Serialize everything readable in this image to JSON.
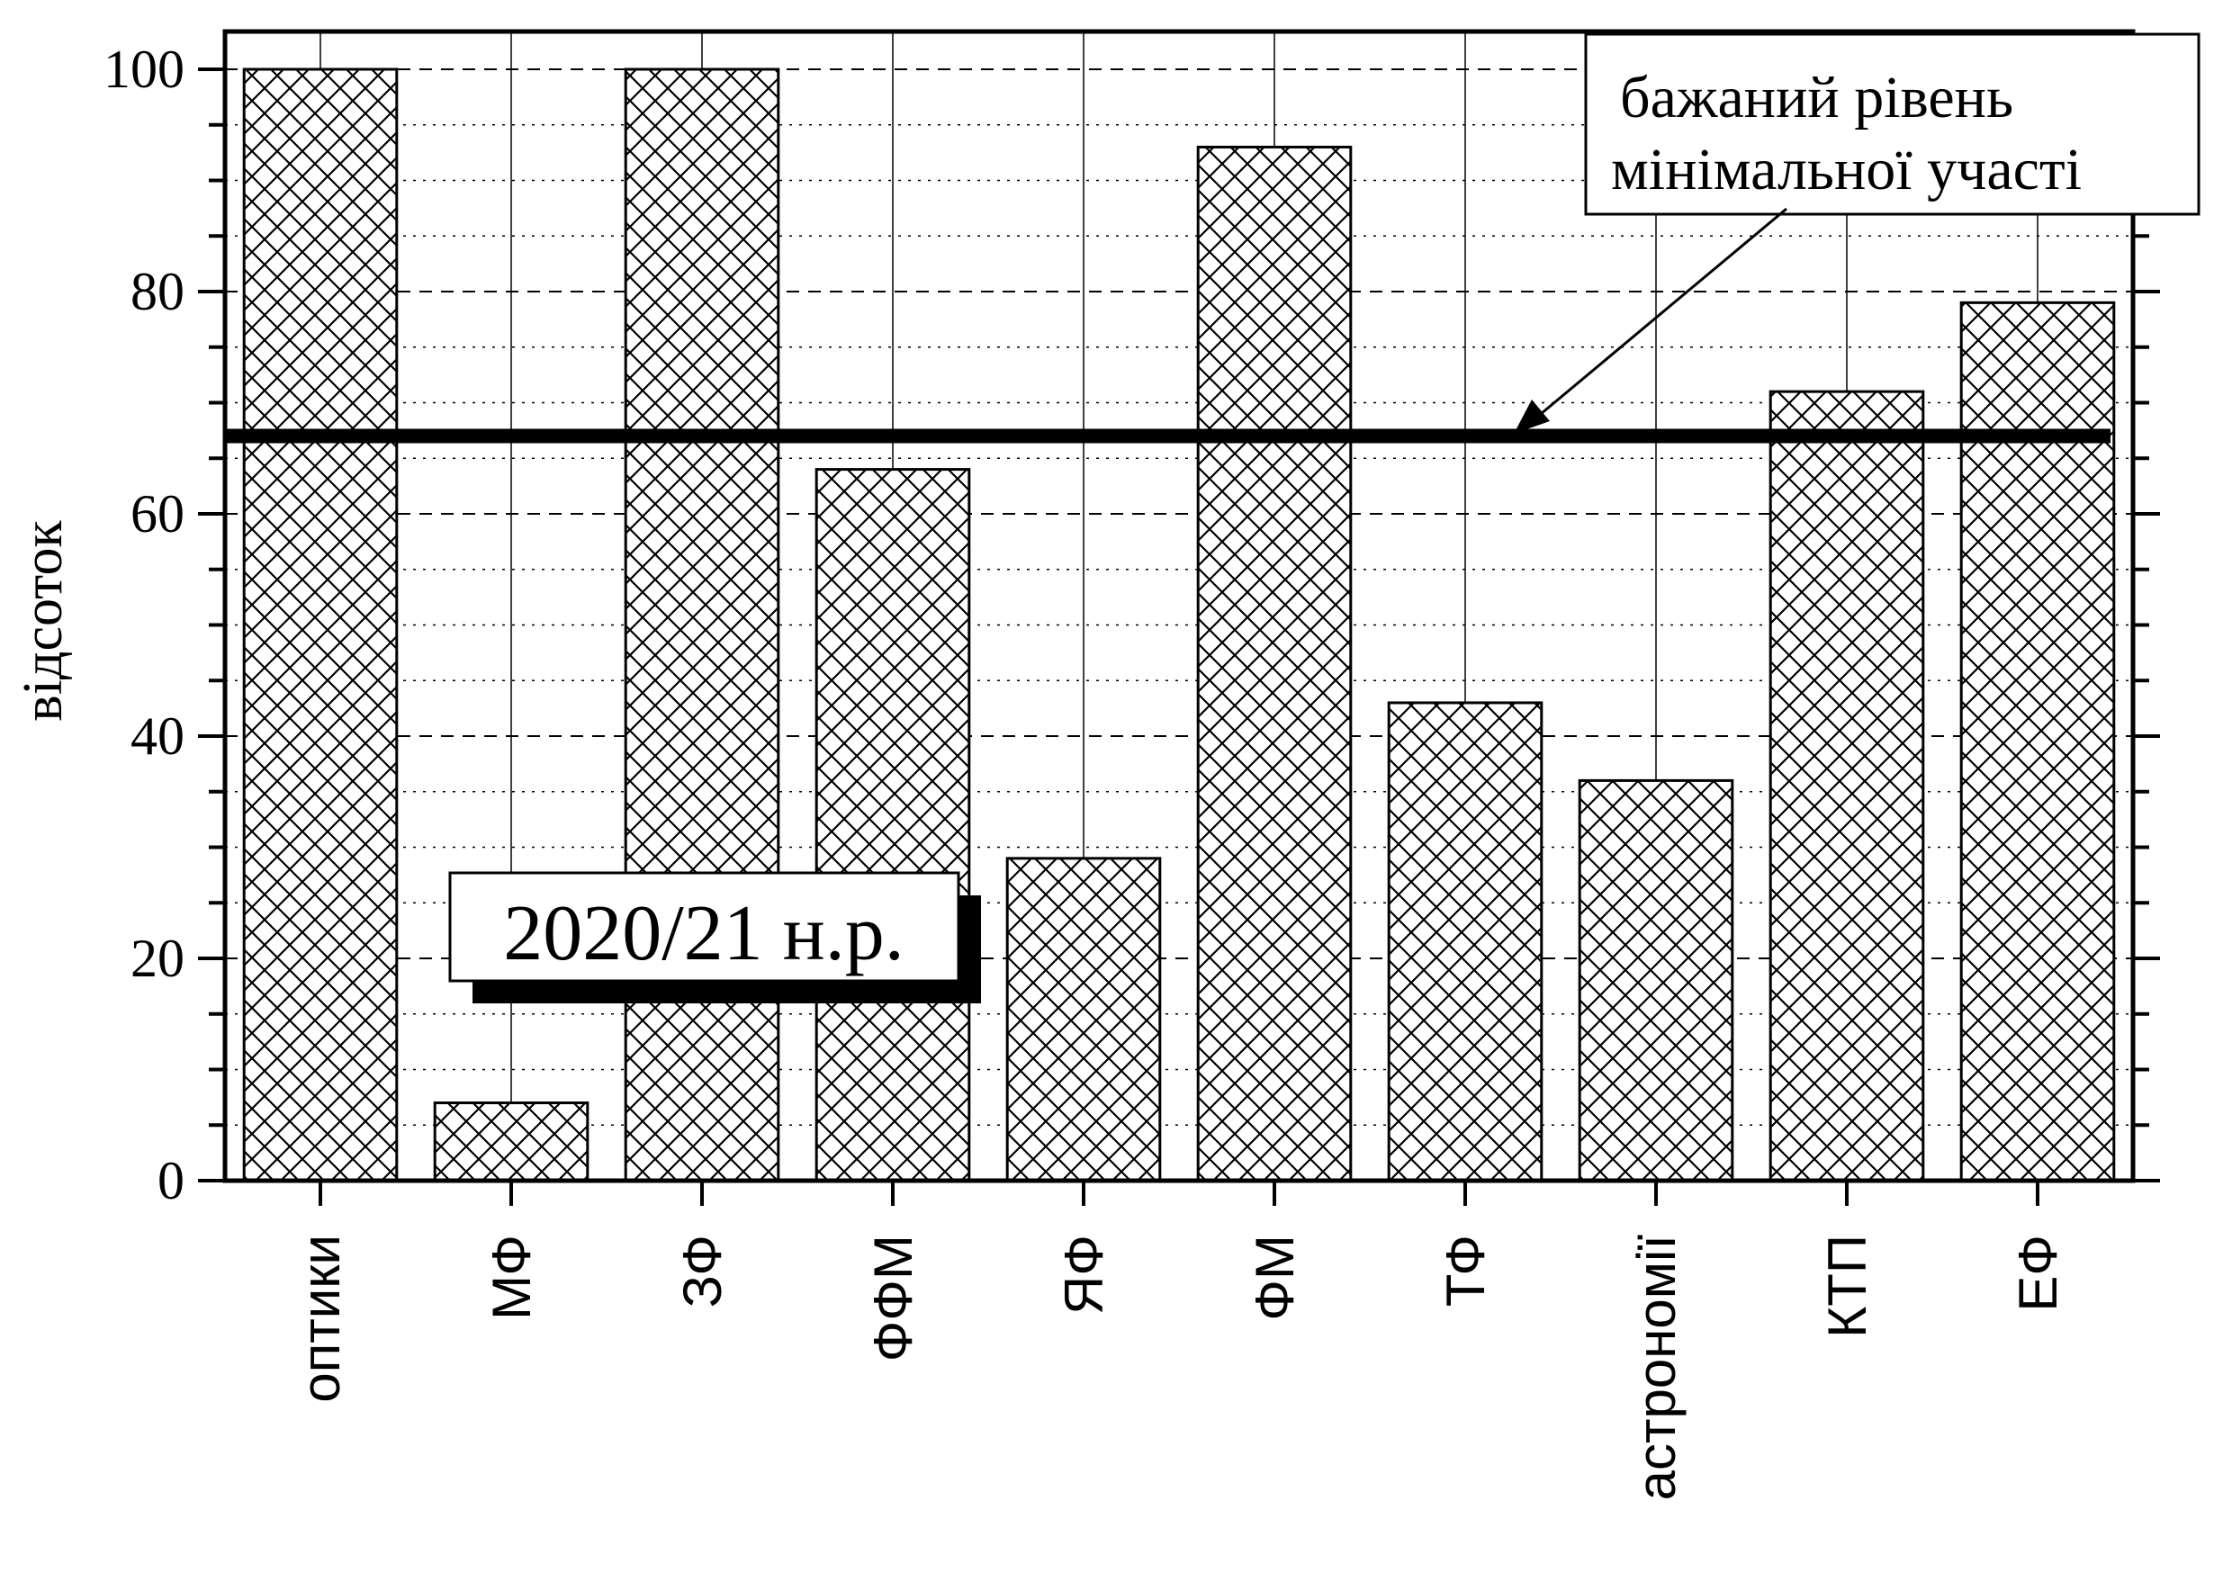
{
  "chart_data": {
    "type": "bar",
    "categories": [
      "оптики",
      "МФ",
      "ЗФ",
      "ФФМ",
      "ЯФ",
      "ФМ",
      "ТФ",
      "астрономії",
      "КТП",
      "ЕФ"
    ],
    "values": [
      100,
      7,
      100,
      64,
      29,
      93,
      43,
      36,
      71,
      79
    ],
    "ylabel": "відсоток",
    "ylim": [
      0,
      100
    ],
    "yticks": [
      "0",
      "20",
      "40",
      "60",
      "80",
      "100"
    ],
    "grid": true,
    "reference_line": {
      "value": 67,
      "label_lines": [
        "бажаний рівень",
        "мінімальної участі"
      ]
    },
    "year_badge": "2020/21 н.р."
  },
  "colors": {
    "bar_fill": "#ffffff",
    "hatch": "#000000",
    "reference_line": "#000000",
    "badge_shadow": "#000000"
  }
}
